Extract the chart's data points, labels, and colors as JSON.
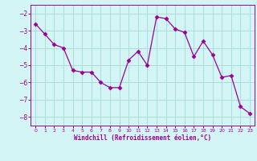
{
  "x": [
    0,
    1,
    2,
    3,
    4,
    5,
    6,
    7,
    8,
    9,
    10,
    11,
    12,
    13,
    14,
    15,
    16,
    17,
    18,
    19,
    20,
    21,
    22,
    23
  ],
  "y": [
    -2.6,
    -3.2,
    -3.8,
    -4.0,
    -5.3,
    -5.4,
    -5.4,
    -6.0,
    -6.3,
    -6.3,
    -4.7,
    -4.2,
    -5.0,
    -2.2,
    -2.3,
    -2.9,
    -3.1,
    -4.5,
    -3.6,
    -4.4,
    -5.7,
    -5.6,
    -7.4,
    -7.8
  ],
  "line_color": "#990099",
  "marker": "D",
  "marker_size": 2.5,
  "bg_color": "#d4f5f5",
  "grid_color": "#aadddd",
  "xlabel": "Windchill (Refroidissement éolien,°C)",
  "xlabel_color": "#990099",
  "tick_color": "#990099",
  "ylim": [
    -8.5,
    -1.5
  ],
  "xlim": [
    -0.5,
    23.5
  ],
  "yticks": [
    -8,
    -7,
    -6,
    -5,
    -4,
    -3,
    -2
  ],
  "xticks": [
    0,
    1,
    2,
    3,
    4,
    5,
    6,
    7,
    8,
    9,
    10,
    11,
    12,
    13,
    14,
    15,
    16,
    17,
    18,
    19,
    20,
    21,
    22,
    23
  ]
}
